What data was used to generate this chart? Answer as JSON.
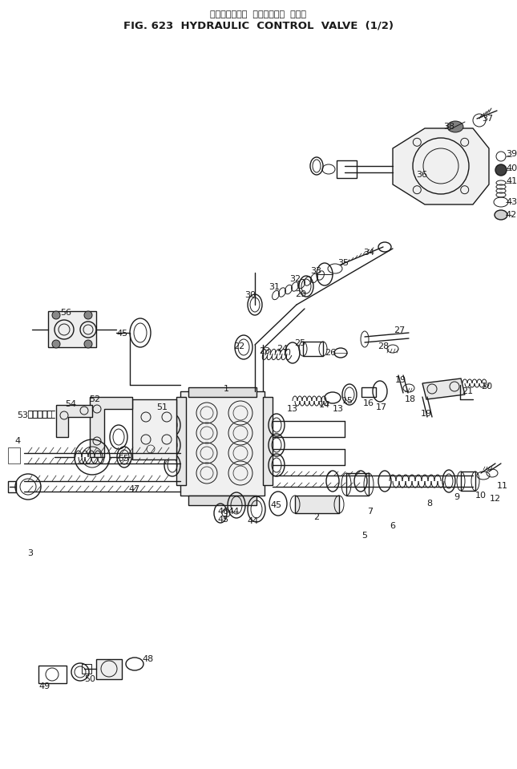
{
  "title_japanese": "ハイドロリック  コントロール  バルブ",
  "title_english": "FIG. 623  HYDRAULIC  CONTROL  VALVE  (1/2)",
  "bg_color": "#ffffff",
  "line_color": "#1a1a1a",
  "title_fontsize": 10,
  "subtitle_fontsize": 8,
  "label_fontsize": 8,
  "fig_width": 6.45,
  "fig_height": 9.59
}
